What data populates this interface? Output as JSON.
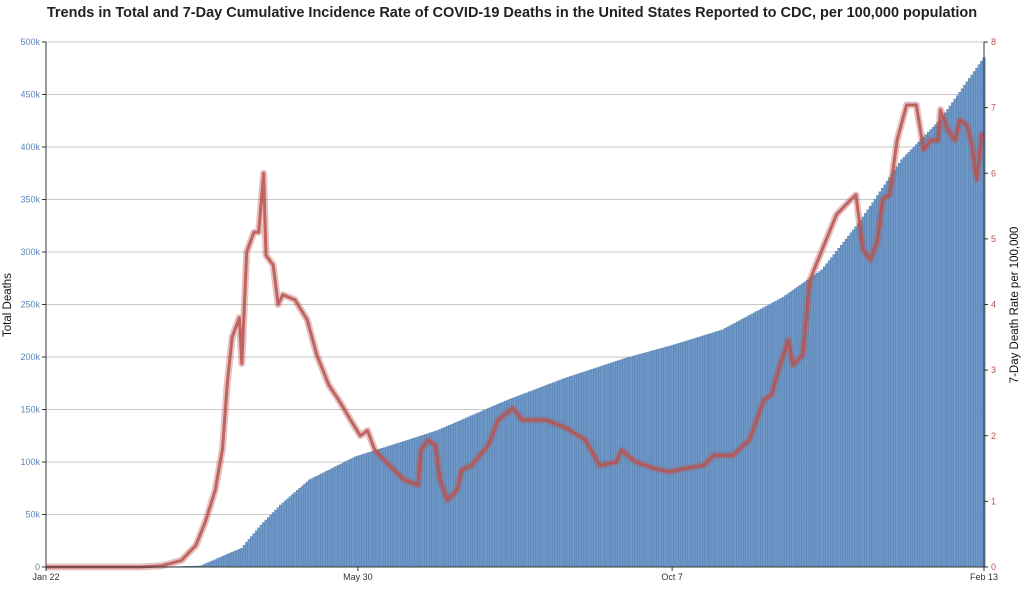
{
  "chart_data": {
    "type": "bar+line",
    "title": "Trends in Total and 7-Day Cumulative Incidence Rate of COVID-19 Deaths in the United States Reported to CDC, per 100,000 population",
    "ylabel_left": "Total Deaths",
    "ylabel_right": "7-Day Death Rate per 100,000",
    "x_range": [
      "2020-01-22",
      "2021-02-13"
    ],
    "x_ticks": [
      {
        "date": "2020-01-22",
        "label": "Jan 22"
      },
      {
        "date": "2020-05-30",
        "label": "May 30"
      },
      {
        "date": "2020-10-07",
        "label": "Oct 7"
      },
      {
        "date": "2021-02-13",
        "label": "Feb 13"
      }
    ],
    "ylim_left": [
      0,
      500000
    ],
    "yticks_left": [
      "0",
      "50k",
      "100k",
      "150k",
      "200k",
      "250k",
      "300k",
      "350k",
      "400k",
      "450k",
      "500k"
    ],
    "ylim_right": [
      0,
      8
    ],
    "yticks_right": [
      "0",
      "1",
      "2",
      "3",
      "4",
      "5",
      "6",
      "7",
      "8"
    ],
    "grid": true,
    "colors": {
      "bars": "#6f98c6",
      "line": "#b85450",
      "left_ticks": "#5b86ba",
      "right_ticks": "#b5524e"
    },
    "series": [
      {
        "type": "bar",
        "axis": "left",
        "frequency": "daily",
        "points": [
          [
            "2020-01-22",
            0
          ],
          [
            "2020-03-10",
            30
          ],
          [
            "2020-03-26",
            1000
          ],
          [
            "2020-04-12",
            18000
          ],
          [
            "2020-04-20",
            40000
          ],
          [
            "2020-04-28",
            59000
          ],
          [
            "2020-05-10",
            83000
          ],
          [
            "2020-05-29",
            105000
          ],
          [
            "2020-06-20",
            121000
          ],
          [
            "2020-07-02",
            130000
          ],
          [
            "2020-07-31",
            159000
          ],
          [
            "2020-08-24",
            180000
          ],
          [
            "2020-09-18",
            199000
          ],
          [
            "2020-10-07",
            211000
          ],
          [
            "2020-10-28",
            226000
          ],
          [
            "2020-11-22",
            257000
          ],
          [
            "2020-12-08",
            283000
          ],
          [
            "2020-12-24",
            330000
          ],
          [
            "2021-01-10",
            388000
          ],
          [
            "2021-01-26",
            426000
          ],
          [
            "2021-02-13",
            485000
          ]
        ]
      },
      {
        "type": "line",
        "axis": "right",
        "points": [
          [
            "2020-01-22",
            0
          ],
          [
            "2020-03-01",
            0
          ],
          [
            "2020-03-10",
            0.02
          ],
          [
            "2020-03-18",
            0.1
          ],
          [
            "2020-03-24",
            0.33
          ],
          [
            "2020-03-28",
            0.7
          ],
          [
            "2020-04-01",
            1.17
          ],
          [
            "2020-04-04",
            1.8
          ],
          [
            "2020-04-06",
            2.8
          ],
          [
            "2020-04-08",
            3.5
          ],
          [
            "2020-04-11",
            3.8
          ],
          [
            "2020-04-12",
            3.1
          ],
          [
            "2020-04-14",
            4.8
          ],
          [
            "2020-04-17",
            5.1
          ],
          [
            "2020-04-19",
            5.1
          ],
          [
            "2020-04-21",
            6.0
          ],
          [
            "2020-04-22",
            4.75
          ],
          [
            "2020-04-25",
            4.6
          ],
          [
            "2020-04-27",
            4.0
          ],
          [
            "2020-04-29",
            4.15
          ],
          [
            "2020-05-04",
            4.07
          ],
          [
            "2020-05-09",
            3.77
          ],
          [
            "2020-05-13",
            3.23
          ],
          [
            "2020-05-18",
            2.77
          ],
          [
            "2020-05-22",
            2.55
          ],
          [
            "2020-05-27",
            2.24
          ],
          [
            "2020-05-31",
            2.0
          ],
          [
            "2020-06-03",
            2.08
          ],
          [
            "2020-06-06",
            1.78
          ],
          [
            "2020-06-12",
            1.55
          ],
          [
            "2020-06-18",
            1.33
          ],
          [
            "2020-06-24",
            1.25
          ],
          [
            "2020-06-25",
            1.78
          ],
          [
            "2020-06-28",
            1.93
          ],
          [
            "2020-07-01",
            1.86
          ],
          [
            "2020-07-03",
            1.33
          ],
          [
            "2020-07-06",
            1.02
          ],
          [
            "2020-07-10",
            1.17
          ],
          [
            "2020-07-12",
            1.48
          ],
          [
            "2020-07-16",
            1.55
          ],
          [
            "2020-07-23",
            1.86
          ],
          [
            "2020-07-27",
            2.24
          ],
          [
            "2020-08-02",
            2.42
          ],
          [
            "2020-08-06",
            2.24
          ],
          [
            "2020-08-16",
            2.24
          ],
          [
            "2020-08-24",
            2.12
          ],
          [
            "2020-09-01",
            1.94
          ],
          [
            "2020-09-07",
            1.55
          ],
          [
            "2020-09-14",
            1.6
          ],
          [
            "2020-09-16",
            1.78
          ],
          [
            "2020-09-22",
            1.6
          ],
          [
            "2020-09-30",
            1.5
          ],
          [
            "2020-10-06",
            1.45
          ],
          [
            "2020-10-12",
            1.5
          ],
          [
            "2020-10-20",
            1.55
          ],
          [
            "2020-10-24",
            1.7
          ],
          [
            "2020-11-01",
            1.7
          ],
          [
            "2020-11-08",
            1.94
          ],
          [
            "2020-11-14",
            2.55
          ],
          [
            "2020-11-17",
            2.62
          ],
          [
            "2020-11-20",
            3.0
          ],
          [
            "2020-11-24",
            3.46
          ],
          [
            "2020-11-26",
            3.08
          ],
          [
            "2020-11-30",
            3.23
          ],
          [
            "2020-12-03",
            4.37
          ],
          [
            "2020-12-08",
            4.83
          ],
          [
            "2020-12-14",
            5.37
          ],
          [
            "2020-12-20",
            5.6
          ],
          [
            "2020-12-22",
            5.67
          ],
          [
            "2020-12-25",
            4.83
          ],
          [
            "2020-12-28",
            4.68
          ],
          [
            "2020-12-31",
            4.98
          ],
          [
            "2021-01-02",
            5.6
          ],
          [
            "2021-01-05",
            5.67
          ],
          [
            "2021-01-08",
            6.5
          ],
          [
            "2021-01-12",
            7.04
          ],
          [
            "2021-01-16",
            7.04
          ],
          [
            "2021-01-19",
            6.36
          ],
          [
            "2021-01-22",
            6.5
          ],
          [
            "2021-01-25",
            6.5
          ],
          [
            "2021-01-26",
            6.97
          ],
          [
            "2021-01-29",
            6.66
          ],
          [
            "2021-02-01",
            6.5
          ],
          [
            "2021-02-03",
            6.81
          ],
          [
            "2021-02-06",
            6.73
          ],
          [
            "2021-02-08",
            6.43
          ],
          [
            "2021-02-10",
            5.9
          ],
          [
            "2021-02-12",
            6.58
          ],
          [
            "2021-02-13",
            6.6
          ]
        ]
      }
    ]
  }
}
